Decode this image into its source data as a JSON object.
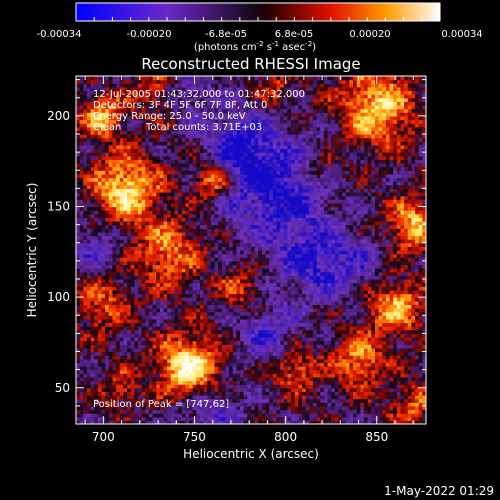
{
  "colorbar": {
    "ticks": [
      "-0.00034",
      "-0.00020",
      "-6.8e-05",
      "6.8e-05",
      "0.00020",
      "0.00034"
    ],
    "range": [
      -0.00034,
      0.00034
    ],
    "unit_main": "(photons cm",
    "unit_exp1": "-2",
    "unit_mid1": " s",
    "unit_exp2": "-1",
    "unit_mid2": " asec",
    "unit_exp3": "-2",
    "unit_end": ")"
  },
  "chart_data": {
    "type": "heatmap",
    "title": "Reconstructed RHESSI Image",
    "xlabel": "Heliocentric X (arcsec)",
    "ylabel": "Heliocentric Y (arcsec)",
    "xlim": [
      685,
      877
    ],
    "ylim": [
      30,
      222
    ],
    "xticks": [
      700,
      750,
      800,
      850
    ],
    "yticks": [
      50,
      100,
      150,
      200
    ],
    "info": {
      "line1": "12-Jul-2005 01:43:32.000 to 01:47:32.000",
      "line2": "Detectors: 3F 4F 5F 6F 7F 8F, Att 0",
      "line3": "Energy Range: 25.0 - 50.0 keV",
      "line4a": "Clean",
      "line4b": "Total counts: 3.71E+03"
    },
    "peak_label": "Position of Peak = [747,62]",
    "peak_position": [
      747,
      62
    ],
    "colors": {
      "low": "#1010ff",
      "mid_low": "#7a3aaa",
      "zero": "#000000",
      "mid_high": "#ff2a00",
      "high": "#ffffff"
    }
  },
  "footer": {
    "timestamp": "1-May-2022 01:29"
  }
}
